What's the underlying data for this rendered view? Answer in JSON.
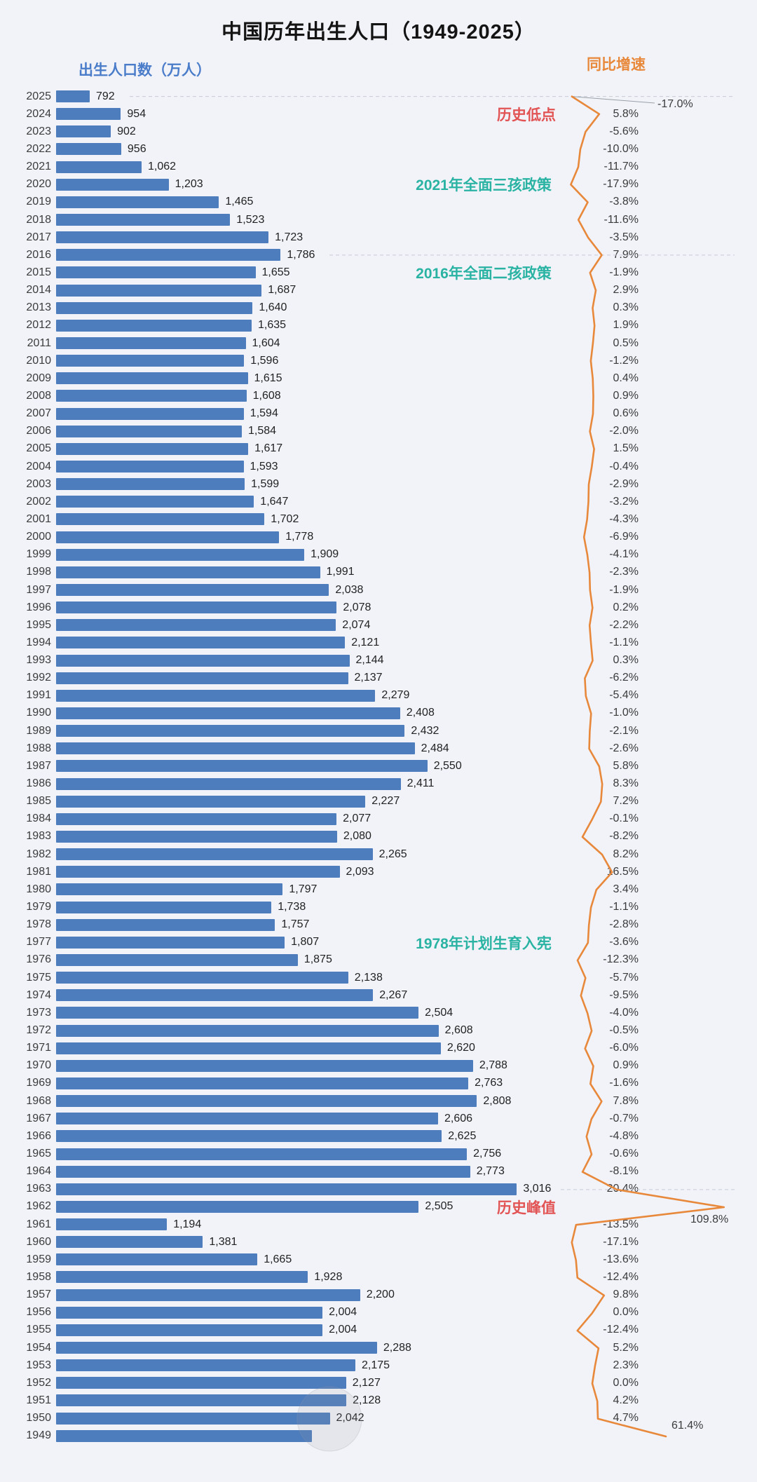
{
  "header": {
    "title": "中国历年出生人口（1949-2025）",
    "left_axis_label": "出生人口数（万人）",
    "right_axis_label": "同比增速"
  },
  "colors": {
    "bar": "#4e7dbe",
    "line": "#e8883a",
    "axis_label_left": "#4a7cc9",
    "axis_label_right": "#e8883a",
    "annotation_red": "#e25454",
    "annotation_teal": "#2ab3a3",
    "gridline": "#c8ccd5",
    "background": "#f1f3f9"
  },
  "annotations": [
    {
      "text": "历史低点",
      "type": "red",
      "year": 2024
    },
    {
      "text": "2021年全面三孩政策",
      "type": "teal",
      "year": 2020
    },
    {
      "text": "2016年全面二孩政策",
      "type": "teal",
      "year": 2015
    },
    {
      "text": "1978年计划生育入宪",
      "type": "teal",
      "year": 1977
    },
    {
      "text": "历史峰值",
      "type": "red",
      "year": 1962
    }
  ],
  "chart_data": {
    "type": "bar",
    "orientation": "horizontal",
    "title": "中国历年出生人口（1949-2025）",
    "bar_series_name": "出生人口数（万人）",
    "line_series_name": "同比增速",
    "legend_position": "top",
    "rows": [
      {
        "year": 2025,
        "births": 792,
        "births_label": "792",
        "growth": -17.0,
        "growth_label": "-17.0%"
      },
      {
        "year": 2024,
        "births": 954,
        "births_label": "954",
        "growth": 5.8,
        "growth_label": "5.8%"
      },
      {
        "year": 2023,
        "births": 902,
        "births_label": "902",
        "growth": -5.6,
        "growth_label": "-5.6%"
      },
      {
        "year": 2022,
        "births": 956,
        "births_label": "956",
        "growth": -10.0,
        "growth_label": "-10.0%"
      },
      {
        "year": 2021,
        "births": 1062,
        "births_label": "1,062",
        "growth": -11.7,
        "growth_label": "-11.7%"
      },
      {
        "year": 2020,
        "births": 1203,
        "births_label": "1,203",
        "growth": -17.9,
        "growth_label": "-17.9%"
      },
      {
        "year": 2019,
        "births": 1465,
        "births_label": "1,465",
        "growth": -3.8,
        "growth_label": "-3.8%"
      },
      {
        "year": 2018,
        "births": 1523,
        "births_label": "1,523",
        "growth": -11.6,
        "growth_label": "-11.6%"
      },
      {
        "year": 2017,
        "births": 1723,
        "births_label": "1,723",
        "growth": -3.5,
        "growth_label": "-3.5%"
      },
      {
        "year": 2016,
        "births": 1786,
        "births_label": "1,786",
        "growth": 7.9,
        "growth_label": "7.9%"
      },
      {
        "year": 2015,
        "births": 1655,
        "births_label": "1,655",
        "growth": -1.9,
        "growth_label": "-1.9%"
      },
      {
        "year": 2014,
        "births": 1687,
        "births_label": "1,687",
        "growth": 2.9,
        "growth_label": "2.9%"
      },
      {
        "year": 2013,
        "births": 1640,
        "births_label": "1,640",
        "growth": 0.3,
        "growth_label": "0.3%"
      },
      {
        "year": 2012,
        "births": 1635,
        "births_label": "1,635",
        "growth": 1.9,
        "growth_label": "1.9%"
      },
      {
        "year": 2011,
        "births": 1604,
        "births_label": "1,604",
        "growth": 0.5,
        "growth_label": "0.5%"
      },
      {
        "year": 2010,
        "births": 1596,
        "births_label": "1,596",
        "growth": -1.2,
        "growth_label": "-1.2%"
      },
      {
        "year": 2009,
        "births": 1615,
        "births_label": "1,615",
        "growth": 0.4,
        "growth_label": "0.4%"
      },
      {
        "year": 2008,
        "births": 1608,
        "births_label": "1,608",
        "growth": 0.9,
        "growth_label": "0.9%"
      },
      {
        "year": 2007,
        "births": 1594,
        "births_label": "1,594",
        "growth": 0.6,
        "growth_label": "0.6%"
      },
      {
        "year": 2006,
        "births": 1584,
        "births_label": "1,584",
        "growth": -2.0,
        "growth_label": "-2.0%"
      },
      {
        "year": 2005,
        "births": 1617,
        "births_label": "1,617",
        "growth": 1.5,
        "growth_label": "1.5%"
      },
      {
        "year": 2004,
        "births": 1593,
        "births_label": "1,593",
        "growth": -0.4,
        "growth_label": "-0.4%"
      },
      {
        "year": 2003,
        "births": 1599,
        "births_label": "1,599",
        "growth": -2.9,
        "growth_label": "-2.9%"
      },
      {
        "year": 2002,
        "births": 1647,
        "births_label": "1,647",
        "growth": -3.2,
        "growth_label": "-3.2%"
      },
      {
        "year": 2001,
        "births": 1702,
        "births_label": "1,702",
        "growth": -4.3,
        "growth_label": "-4.3%"
      },
      {
        "year": 2000,
        "births": 1778,
        "births_label": "1,778",
        "growth": -6.9,
        "growth_label": "-6.9%"
      },
      {
        "year": 1999,
        "births": 1909,
        "births_label": "1,909",
        "growth": -4.1,
        "growth_label": "-4.1%"
      },
      {
        "year": 1998,
        "births": 1991,
        "births_label": "1,991",
        "growth": -2.3,
        "growth_label": "-2.3%"
      },
      {
        "year": 1997,
        "births": 2038,
        "births_label": "2,038",
        "growth": -1.9,
        "growth_label": "-1.9%"
      },
      {
        "year": 1996,
        "births": 2078,
        "births_label": "2,078",
        "growth": 0.2,
        "growth_label": "0.2%"
      },
      {
        "year": 1995,
        "births": 2074,
        "births_label": "2,074",
        "growth": -2.2,
        "growth_label": "-2.2%"
      },
      {
        "year": 1994,
        "births": 2121,
        "births_label": "2,121",
        "growth": -1.1,
        "growth_label": "-1.1%"
      },
      {
        "year": 1993,
        "births": 2144,
        "births_label": "2,144",
        "growth": 0.3,
        "growth_label": "0.3%"
      },
      {
        "year": 1992,
        "births": 2137,
        "births_label": "2,137",
        "growth": -6.2,
        "growth_label": "-6.2%"
      },
      {
        "year": 1991,
        "births": 2279,
        "births_label": "2,279",
        "growth": -5.4,
        "growth_label": "-5.4%"
      },
      {
        "year": 1990,
        "births": 2408,
        "births_label": "2,408",
        "growth": -1.0,
        "growth_label": "-1.0%"
      },
      {
        "year": 1989,
        "births": 2432,
        "births_label": "2,432",
        "growth": -2.1,
        "growth_label": "-2.1%"
      },
      {
        "year": 1988,
        "births": 2484,
        "births_label": "2,484",
        "growth": -2.6,
        "growth_label": "-2.6%"
      },
      {
        "year": 1987,
        "births": 2550,
        "births_label": "2,550",
        "growth": 5.8,
        "growth_label": "5.8%"
      },
      {
        "year": 1986,
        "births": 2411,
        "births_label": "2,411",
        "growth": 8.3,
        "growth_label": "8.3%"
      },
      {
        "year": 1985,
        "births": 2227,
        "births_label": "2,227",
        "growth": 7.2,
        "growth_label": "7.2%"
      },
      {
        "year": 1984,
        "births": 2077,
        "births_label": "2,077",
        "growth": -0.1,
        "growth_label": "-0.1%"
      },
      {
        "year": 1983,
        "births": 2080,
        "births_label": "2,080",
        "growth": -8.2,
        "growth_label": "-8.2%"
      },
      {
        "year": 1982,
        "births": 2265,
        "births_label": "2,265",
        "growth": 8.2,
        "growth_label": "8.2%"
      },
      {
        "year": 1981,
        "births": 2093,
        "births_label": "2,093",
        "growth": 16.5,
        "growth_label": "16.5%"
      },
      {
        "year": 1980,
        "births": 1797,
        "births_label": "1,797",
        "growth": 3.4,
        "growth_label": "3.4%"
      },
      {
        "year": 1979,
        "births": 1738,
        "births_label": "1,738",
        "growth": -1.1,
        "growth_label": "-1.1%"
      },
      {
        "year": 1978,
        "births": 1757,
        "births_label": "1,757",
        "growth": -2.8,
        "growth_label": "-2.8%"
      },
      {
        "year": 1977,
        "births": 1807,
        "births_label": "1,807",
        "growth": -3.6,
        "growth_label": "-3.6%"
      },
      {
        "year": 1976,
        "births": 1875,
        "births_label": "1,875",
        "growth": -12.3,
        "growth_label": "-12.3%"
      },
      {
        "year": 1975,
        "births": 2138,
        "births_label": "2,138",
        "growth": -5.7,
        "growth_label": "-5.7%"
      },
      {
        "year": 1974,
        "births": 2267,
        "births_label": "2,267",
        "growth": -9.5,
        "growth_label": "-9.5%"
      },
      {
        "year": 1973,
        "births": 2504,
        "births_label": "2,504",
        "growth": -4.0,
        "growth_label": "-4.0%"
      },
      {
        "year": 1972,
        "births": 2608,
        "births_label": "2,608",
        "growth": -0.5,
        "growth_label": "-0.5%"
      },
      {
        "year": 1971,
        "births": 2620,
        "births_label": "2,620",
        "growth": -6.0,
        "growth_label": "-6.0%"
      },
      {
        "year": 1970,
        "births": 2788,
        "births_label": "2,788",
        "growth": 0.9,
        "growth_label": "0.9%"
      },
      {
        "year": 1969,
        "births": 2763,
        "births_label": "2,763",
        "growth": -1.6,
        "growth_label": "-1.6%"
      },
      {
        "year": 1968,
        "births": 2808,
        "births_label": "2,808",
        "growth": 7.8,
        "growth_label": "7.8%"
      },
      {
        "year": 1967,
        "births": 2606,
        "births_label": "2,606",
        "growth": -0.7,
        "growth_label": "-0.7%"
      },
      {
        "year": 1966,
        "births": 2625,
        "births_label": "2,625",
        "growth": -4.8,
        "growth_label": "-4.8%"
      },
      {
        "year": 1965,
        "births": 2756,
        "births_label": "2,756",
        "growth": -0.6,
        "growth_label": "-0.6%"
      },
      {
        "year": 1964,
        "births": 2773,
        "births_label": "2,773",
        "growth": -8.1,
        "growth_label": "-8.1%"
      },
      {
        "year": 1963,
        "births": 3016,
        "births_label": "3,016",
        "growth": 20.4,
        "growth_label": "20.4%"
      },
      {
        "year": 1962,
        "births": 2505,
        "births_label": "2,505",
        "growth": 109.8,
        "growth_label": "109.8%"
      },
      {
        "year": 1961,
        "births": 1194,
        "births_label": "1,194",
        "growth": -13.5,
        "growth_label": "-13.5%"
      },
      {
        "year": 1960,
        "births": 1381,
        "births_label": "1,381",
        "growth": -17.1,
        "growth_label": "-17.1%"
      },
      {
        "year": 1959,
        "births": 1665,
        "births_label": "1,665",
        "growth": -13.6,
        "growth_label": "-13.6%"
      },
      {
        "year": 1958,
        "births": 1928,
        "births_label": "1,928",
        "growth": -12.4,
        "growth_label": "-12.4%"
      },
      {
        "year": 1957,
        "births": 2200,
        "births_label": "2,200",
        "growth": 9.8,
        "growth_label": "9.8%"
      },
      {
        "year": 1956,
        "births": 2004,
        "births_label": "2,004",
        "growth": 0.0,
        "growth_label": "0.0%"
      },
      {
        "year": 1955,
        "births": 2004,
        "births_label": "2,004",
        "growth": -12.4,
        "growth_label": "-12.4%"
      },
      {
        "year": 1954,
        "births": 2288,
        "births_label": "2,288",
        "growth": 5.2,
        "growth_label": "5.2%"
      },
      {
        "year": 1953,
        "births": 2175,
        "births_label": "2,175",
        "growth": 2.3,
        "growth_label": "2.3%"
      },
      {
        "year": 1952,
        "births": 2127,
        "births_label": "2,127",
        "growth": 0.0,
        "growth_label": "0.0%"
      },
      {
        "year": 1951,
        "births": 2128,
        "births_label": "2,128",
        "growth": 4.2,
        "growth_label": "4.2%"
      },
      {
        "year": 1950,
        "births": 2042,
        "births_label": "2,042",
        "growth": 4.7,
        "growth_label": "4.7%"
      },
      {
        "year": 1949,
        "births": 1950,
        "births_label": "",
        "growth": 61.4,
        "growth_label": "61.4%"
      }
    ]
  }
}
